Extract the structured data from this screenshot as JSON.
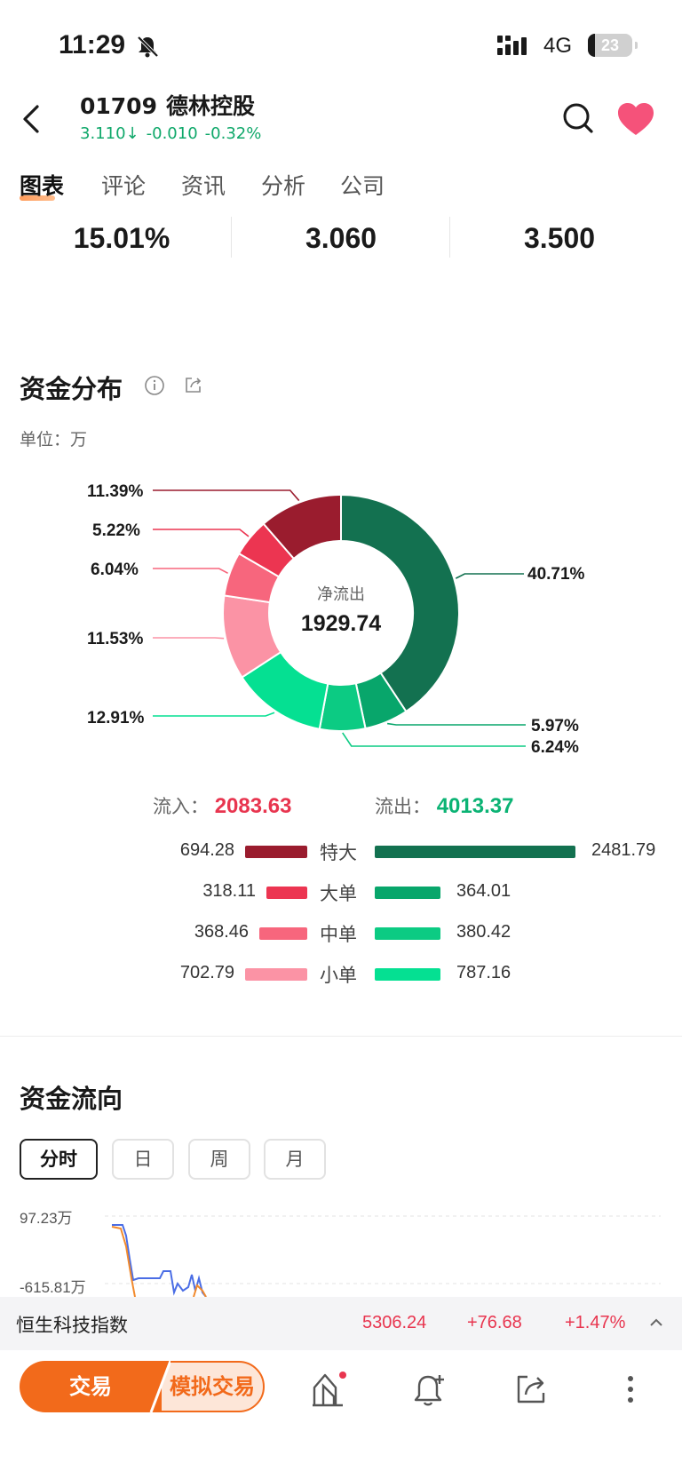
{
  "status_bar": {
    "time": "11:29",
    "network": "4G",
    "battery": "23"
  },
  "header": {
    "code": "01709",
    "name": "德林控股",
    "price": "3.110",
    "change": "-0.010",
    "change_pct": "-0.32%",
    "colors": {
      "down": "#0fa86a",
      "favorite": "#f5527a"
    }
  },
  "tabs": [
    {
      "label": "图表",
      "active": true
    },
    {
      "label": "评论"
    },
    {
      "label": "资讯"
    },
    {
      "label": "分析"
    },
    {
      "label": "公司"
    }
  ],
  "stats": [
    "15.01%",
    "3.060",
    "3.500"
  ],
  "fund_distribution": {
    "title": "资金分布",
    "unit_label": "单位：万",
    "center_label": "净流出",
    "center_value": "1929.74",
    "inflow_label": "流入：",
    "inflow_value": "2083.63",
    "outflow_label": "流出：",
    "outflow_value": "4013.37"
  },
  "chart_data": {
    "type": "pie",
    "center_label": "净流出",
    "center_value": 1929.74,
    "slices": [
      {
        "label": "40.71%",
        "value": 40.71,
        "color": "#137150"
      },
      {
        "label": "5.97%",
        "value": 5.97,
        "color": "#08a66b"
      },
      {
        "label": "6.24%",
        "value": 6.24,
        "color": "#0ccb83"
      },
      {
        "label": "12.91%",
        "value": 12.91,
        "color": "#05e092"
      },
      {
        "label": "11.53%",
        "value": 11.53,
        "color": "#fb93a5"
      },
      {
        "label": "6.04%",
        "value": 6.04,
        "color": "#f7667d"
      },
      {
        "label": "5.22%",
        "value": 5.22,
        "color": "#ec3551"
      },
      {
        "label": "11.39%",
        "value": 11.39,
        "color": "#9a1c2e"
      }
    ],
    "orders": [
      {
        "label": "特大",
        "in": 694.28,
        "in_text": "694.28",
        "out": 2481.79,
        "out_text": "2481.79",
        "in_color": "#9a1c2e",
        "out_color": "#137150"
      },
      {
        "label": "大单",
        "in": 318.11,
        "in_text": "318.11",
        "out": 364.01,
        "out_text": "364.01",
        "in_color": "#ec3551",
        "out_color": "#08a66b"
      },
      {
        "label": "中单",
        "in": 368.46,
        "in_text": "368.46",
        "out": 380.42,
        "out_text": "380.42",
        "in_color": "#f7667d",
        "out_color": "#0ccb83"
      },
      {
        "label": "小单",
        "in": 702.79,
        "in_text": "702.79",
        "out": 787.16,
        "out_text": "787.16",
        "in_color": "#fb93a5",
        "out_color": "#05e092"
      }
    ]
  },
  "fund_flow": {
    "title": "资金流向",
    "periods": [
      {
        "label": "分时",
        "active": true
      },
      {
        "label": "日"
      },
      {
        "label": "周"
      },
      {
        "label": "月"
      }
    ],
    "y_max_label": "97.23万",
    "y_min_label": "-615.81万"
  },
  "index_bar": {
    "name": "恒生科技指数",
    "value": "5306.24",
    "change": "+76.68",
    "change_pct": "+1.47%"
  },
  "bottom": {
    "trade": "交易",
    "sim_trade": "模拟交易"
  }
}
